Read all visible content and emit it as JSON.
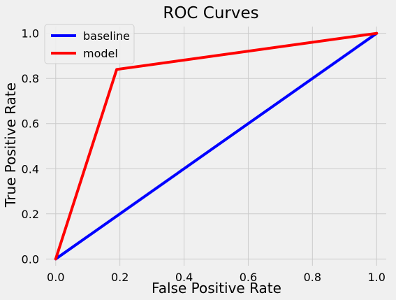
{
  "chart_data": {
    "type": "line",
    "title": "ROC Curves",
    "xlabel": "False Positive Rate",
    "ylabel": "True Positive Rate",
    "xlim": [
      -0.03,
      1.03
    ],
    "ylim": [
      -0.03,
      1.03
    ],
    "xticks": [
      "0.0",
      "0.2",
      "0.4",
      "0.6",
      "0.8",
      "1.0"
    ],
    "yticks": [
      "0.0",
      "0.2",
      "0.4",
      "0.6",
      "0.8",
      "1.0"
    ],
    "grid": true,
    "legend_position": "top-left",
    "series": [
      {
        "name": "baseline",
        "color": "#0000ff",
        "x": [
          0.0,
          1.0
        ],
        "y": [
          0.0,
          1.0
        ]
      },
      {
        "name": "model",
        "color": "#ff0000",
        "x": [
          0.0,
          0.19,
          1.0
        ],
        "y": [
          0.0,
          0.84,
          1.0
        ]
      }
    ]
  }
}
